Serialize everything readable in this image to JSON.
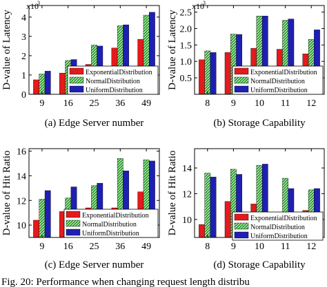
{
  "legend_entries": [
    "ExponentialDistribution",
    "NormalDistribution",
    "UniformDistribution"
  ],
  "figure_caption": "Fig. 20: Performance when changing request length distribu",
  "colors": {
    "exponential": "#e41a1c",
    "normal": "#2ca02c",
    "uniform": "#1f1fb4"
  },
  "chart_data": [
    {
      "type": "bar",
      "caption": "(a) Edge Server number",
      "ylabel": "D-value of Latency",
      "yexp": "x10",
      "yexp_power": "3",
      "categories": [
        "9",
        "16",
        "25",
        "36",
        "49"
      ],
      "ylim": [
        0,
        4.6
      ],
      "yticks": [
        0,
        1,
        2,
        3,
        4
      ],
      "series": [
        {
          "name": "ExponentialDistribution",
          "values": [
            0.75,
            1.1,
            1.55,
            2.4,
            2.85
          ]
        },
        {
          "name": "NormalDistribution",
          "values": [
            1.05,
            1.75,
            2.55,
            3.55,
            4.1
          ]
        },
        {
          "name": "UniformDistribution",
          "values": [
            1.2,
            1.8,
            2.5,
            3.6,
            4.25
          ]
        }
      ]
    },
    {
      "type": "bar",
      "caption": "(b) Storage Capability",
      "ylabel": "D-value of Latency",
      "yexp": "x10",
      "yexp_power": "3",
      "categories": [
        "8",
        "9",
        "10",
        "11",
        "12"
      ],
      "ylim": [
        0,
        2.7
      ],
      "yticks": [
        0.5,
        1.0,
        1.5,
        2.0,
        2.5
      ],
      "series": [
        {
          "name": "ExponentialDistribution",
          "values": [
            1.05,
            1.27,
            1.4,
            1.37,
            1.23
          ]
        },
        {
          "name": "NormalDistribution",
          "values": [
            1.32,
            1.83,
            2.38,
            2.25,
            1.67
          ]
        },
        {
          "name": "UniformDistribution",
          "values": [
            1.27,
            1.82,
            2.38,
            2.29,
            1.96
          ]
        }
      ]
    },
    {
      "type": "bar",
      "caption": "(c) Edge Server number",
      "ylabel": "D-value of Hit Ratio",
      "categories": [
        "9",
        "16",
        "25",
        "36",
        "49"
      ],
      "ylim": [
        9,
        16.2
      ],
      "yticks": [
        10,
        12,
        14,
        16
      ],
      "series": [
        {
          "name": "ExponentialDistribution",
          "values": [
            10.4,
            11.1,
            11.4,
            11.4,
            12.7
          ]
        },
        {
          "name": "NormalDistribution",
          "values": [
            12.1,
            12.2,
            13.2,
            15.4,
            15.3
          ]
        },
        {
          "name": "UniformDistribution",
          "values": [
            12.8,
            13.1,
            13.4,
            14.4,
            15.2
          ]
        }
      ]
    },
    {
      "type": "bar",
      "caption": "(d) Storage Capability",
      "ylabel": "D-value of Hit Ratio",
      "categories": [
        "8",
        "9",
        "10",
        "11",
        "12"
      ],
      "ylim": [
        8.6,
        15.5
      ],
      "yticks": [
        10,
        12,
        14
      ],
      "series": [
        {
          "name": "ExponentialDistribution",
          "values": [
            9.6,
            11.4,
            11.2,
            9.9,
            10.7
          ]
        },
        {
          "name": "NormalDistribution",
          "values": [
            13.6,
            13.9,
            14.2,
            13.2,
            12.3
          ]
        },
        {
          "name": "UniformDistribution",
          "values": [
            13.3,
            13.5,
            14.3,
            12.4,
            12.4
          ]
        }
      ]
    }
  ]
}
